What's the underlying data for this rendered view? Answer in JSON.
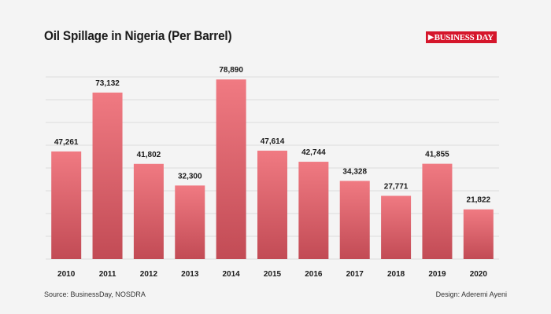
{
  "header": {
    "title": "Oil Spillage in Nigeria (Per Barrel)",
    "logo_text": "BUSINESS DAY"
  },
  "footer": {
    "source": "Source: BusinessDay, NOSDRA",
    "credit": "Design: Aderemi Ayeni"
  },
  "colors": {
    "bar_top": "#f07a82",
    "bar_bottom": "#c24b55",
    "grid": "#dcdcdc",
    "logo": "#d5162b"
  },
  "chart_data": {
    "type": "bar",
    "title": "Oil Spillage in Nigeria (Per Barrel)",
    "xlabel": "",
    "ylabel": "",
    "categories": [
      "2010",
      "2011",
      "2012",
      "2013",
      "2014",
      "2015",
      "2016",
      "2017",
      "2018",
      "2019",
      "2020"
    ],
    "values": [
      47261,
      73132,
      41802,
      32300,
      78890,
      47614,
      42744,
      34328,
      27771,
      41855,
      21822
    ],
    "data_labels": [
      "47,261",
      "73,132",
      "41,802",
      "32,300",
      "78,890",
      "47,614",
      "42,744",
      "34,328",
      "27,771",
      "41,855",
      "21,822"
    ],
    "ylim": [
      0,
      80000
    ],
    "grid": true,
    "legend": "none"
  }
}
